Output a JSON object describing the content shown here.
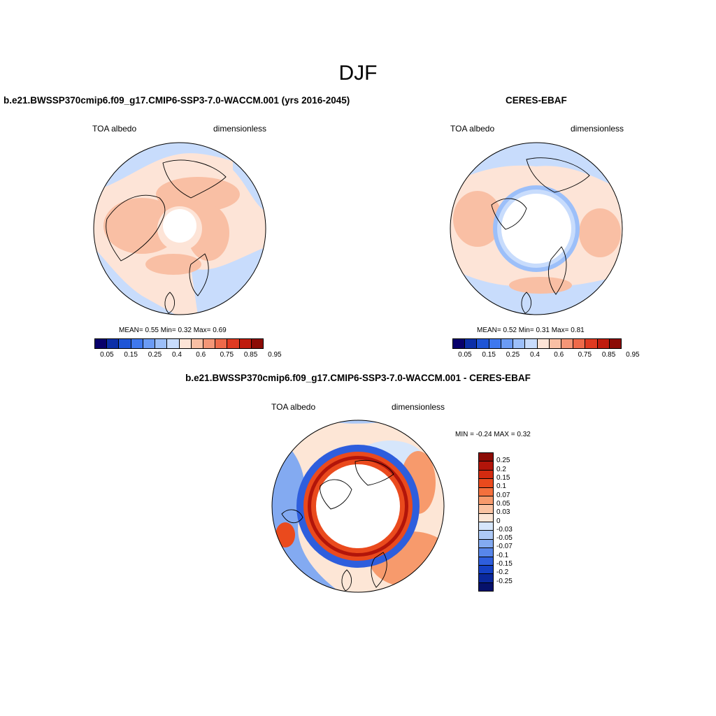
{
  "title": "DJF",
  "panel1": {
    "case": "b.e21.BWSSP370cmip6.f09_g17.CMIP6-SSP3-7.0-WACCM.001 (yrs 2016-2045)",
    "var": "TOA albedo",
    "units": "dimensionless",
    "stats": "MEAN=   0.55  Min=   0.32  Max=   0.69"
  },
  "panel2": {
    "case": "CERES-EBAF",
    "var": "TOA albedo",
    "units": "dimensionless",
    "stats": "MEAN=   0.52  Min=   0.31  Max=   0.81"
  },
  "panel3": {
    "case": "b.e21.BWSSP370cmip6.f09_g17.CMIP6-SSP3-7.0-WACCM.001 - CERES-EBAF",
    "var": "TOA albedo",
    "units": "dimensionless",
    "minmax": "MIN =  -0.24 MAX =   0.32"
  },
  "colorbar_abs": {
    "colors": [
      "#08006b",
      "#0c2fa8",
      "#1f55d6",
      "#3f78ee",
      "#6b9bf5",
      "#9cbff9",
      "#c8dcfc",
      "#fde4d7",
      "#f9bfa4",
      "#f49677",
      "#ee6a4a",
      "#df3a21",
      "#bf1c0e",
      "#8c0b05"
    ],
    "labels": [
      "0.05",
      "0.15",
      "0.25",
      "0.4",
      "0.6",
      "0.75",
      "0.85",
      "0.95"
    ]
  },
  "colorbar_diff": {
    "colors": [
      "#8c0b05",
      "#b2150a",
      "#d22b10",
      "#ea4a1d",
      "#f4703d",
      "#f79a6c",
      "#fbc3a2",
      "#fde6d6",
      "#d6e6fb",
      "#adc9f6",
      "#83aaf1",
      "#5886ea",
      "#2e5edd",
      "#1440c4",
      "#0a289c",
      "#06116b"
    ],
    "labels": [
      "0.25",
      "0.2",
      "0.15",
      "0.1",
      "0.07",
      "0.05",
      "0.03",
      "0",
      "-0.03",
      "-0.05",
      "-0.07",
      "-0.1",
      "-0.15",
      "-0.2",
      "-0.25"
    ]
  },
  "chart_data": [
    {
      "type": "heatmap",
      "title": "b.e21.BWSSP370cmip6.f09_g17.CMIP6-SSP3-7.0-WACCM.001 (yrs 2016-2045)",
      "variable": "TOA albedo",
      "units": "dimensionless",
      "projection": "north polar stereographic",
      "mean": 0.55,
      "min": 0.32,
      "max": 0.69,
      "levels": [
        0.05,
        0.1,
        0.15,
        0.2,
        0.25,
        0.3,
        0.4,
        0.5,
        0.6,
        0.7,
        0.75,
        0.8,
        0.85,
        0.9,
        0.95
      ]
    },
    {
      "type": "heatmap",
      "title": "CERES-EBAF",
      "variable": "TOA albedo",
      "units": "dimensionless",
      "projection": "north polar stereographic",
      "mean": 0.52,
      "min": 0.31,
      "max": 0.81,
      "levels": [
        0.05,
        0.1,
        0.15,
        0.2,
        0.25,
        0.3,
        0.4,
        0.5,
        0.6,
        0.7,
        0.75,
        0.8,
        0.85,
        0.9,
        0.95
      ]
    },
    {
      "type": "heatmap",
      "title": "b.e21.BWSSP370cmip6.f09_g17.CMIP6-SSP3-7.0-WACCM.001 - CERES-EBAF",
      "variable": "TOA albedo",
      "units": "dimensionless",
      "projection": "north polar stereographic",
      "min": -0.24,
      "max": 0.32,
      "levels": [
        -0.25,
        -0.2,
        -0.15,
        -0.1,
        -0.07,
        -0.05,
        -0.03,
        0,
        0.03,
        0.05,
        0.07,
        0.1,
        0.15,
        0.2,
        0.25
      ]
    }
  ]
}
